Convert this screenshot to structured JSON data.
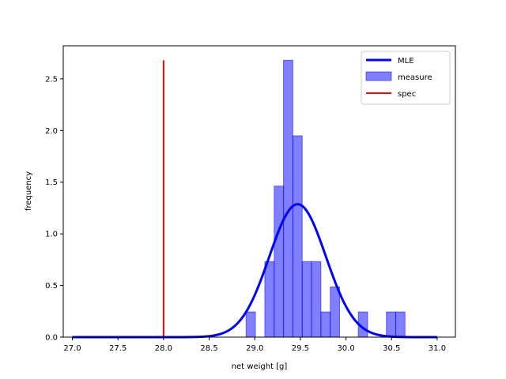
{
  "chart_data": {
    "type": "bar",
    "title": "",
    "xlabel": "net weight [g]",
    "ylabel": "frequency",
    "xlim": [
      26.9,
      31.2
    ],
    "ylim": [
      0,
      2.82
    ],
    "xticks": [
      27.0,
      27.5,
      28.0,
      28.5,
      29.0,
      29.5,
      30.0,
      30.5,
      31.0
    ],
    "xtick_labels": [
      "27.0",
      "27.5",
      "28.0",
      "28.5",
      "29.0",
      "29.5",
      "30.0",
      "30.5",
      "31.0"
    ],
    "yticks": [
      0.0,
      0.5,
      1.0,
      1.5,
      2.0,
      2.5
    ],
    "ytick_labels": [
      "0.0",
      "0.5",
      "1.0",
      "1.5",
      "2.0",
      "2.5"
    ],
    "grid": false,
    "legend_position": "top-right",
    "bin_width": 0.1025,
    "histogram": {
      "name": "measure",
      "color": "#0000ff",
      "bins": [
        {
          "x0": 28.905,
          "value": 0.244
        },
        {
          "x0": 29.11,
          "value": 0.731
        },
        {
          "x0": 29.213,
          "value": 1.462
        },
        {
          "x0": 29.315,
          "value": 2.68
        },
        {
          "x0": 29.418,
          "value": 1.949
        },
        {
          "x0": 29.52,
          "value": 0.731
        },
        {
          "x0": 29.623,
          "value": 0.731
        },
        {
          "x0": 29.725,
          "value": 0.244
        },
        {
          "x0": 29.828,
          "value": 0.487
        },
        {
          "x0": 30.135,
          "value": 0.244
        },
        {
          "x0": 30.443,
          "value": 0.244
        },
        {
          "x0": 30.545,
          "value": 0.244
        }
      ]
    },
    "mle": {
      "name": "MLE",
      "color": "#0000ff",
      "distribution": "normal",
      "mean": 29.47,
      "std": 0.31,
      "x_range": [
        27.0,
        31.0
      ]
    },
    "spec": {
      "name": "spec",
      "color": "#ff0000",
      "x": 28.0,
      "y_range": [
        0,
        2.68
      ]
    }
  }
}
